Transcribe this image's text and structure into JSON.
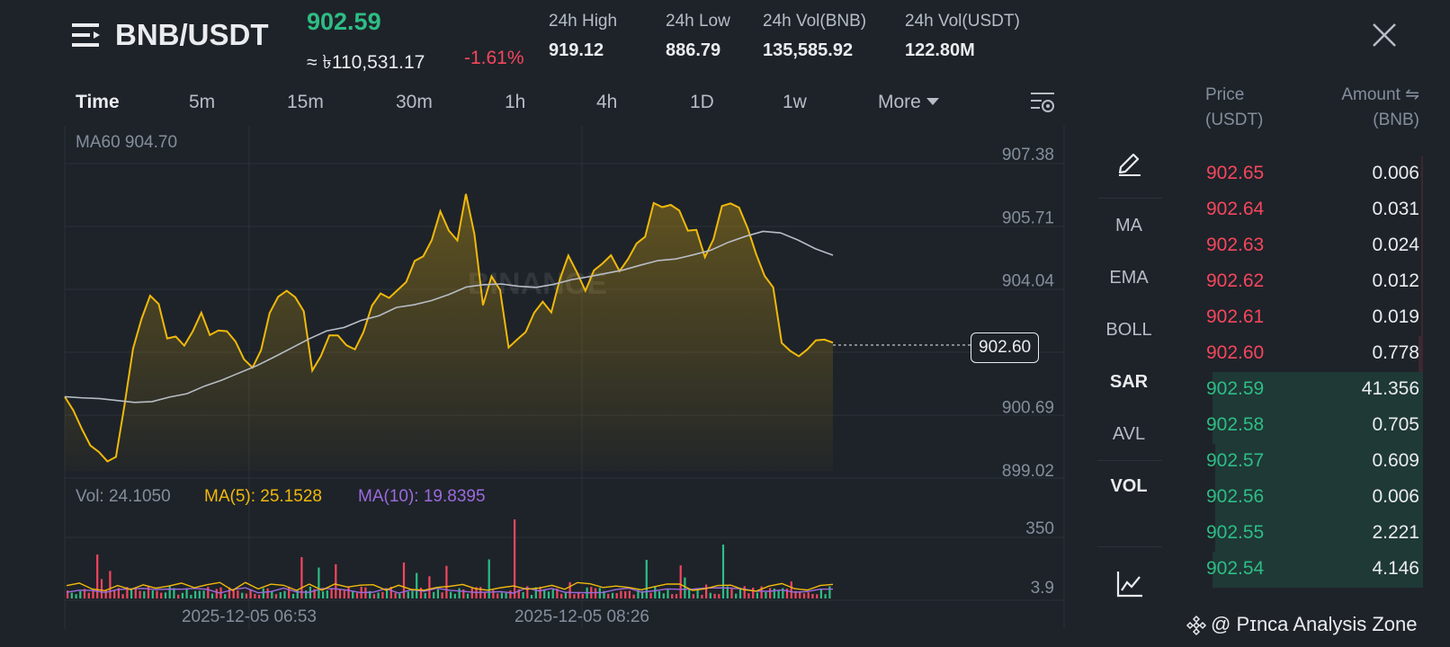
{
  "header": {
    "pair": "BNB/USDT",
    "last_price": "902.59",
    "fiat_value": "≈ ৳110,531.17",
    "change_pct": "-1.61%",
    "stats": [
      {
        "label": "24h High",
        "value": "919.12"
      },
      {
        "label": "24h Low",
        "value": "886.79"
      },
      {
        "label": "24h Vol(BNB)",
        "value": "135,585.92"
      },
      {
        "label": "24h Vol(USDT)",
        "value": "122.80M"
      }
    ],
    "icons": {
      "menu": "menu-lines-icon",
      "close": "close-icon"
    }
  },
  "intervals": {
    "tabs": [
      "Time",
      "5m",
      "15m",
      "30m",
      "1h",
      "4h",
      "1D",
      "1w",
      "More"
    ],
    "active": "Time",
    "settings_icon": "chart-settings-icon"
  },
  "chart": {
    "indicator_label": "MA60 904.70",
    "watermark": "BINANCE",
    "price_axis": [
      "907.38",
      "905.71",
      "904.04",
      "900.69",
      "899.02"
    ],
    "current_price_tag": "902.60",
    "volume_legend": {
      "vol": "Vol: 24.1050",
      "ma5": "MA(5): 25.1528",
      "ma10": "MA(10): 19.8395"
    },
    "volume_axis": [
      "350",
      "3.9"
    ],
    "time_axis": [
      "2025-12-05 06:53",
      "2025-12-05 08:26"
    ],
    "colors": {
      "line": "#f0b90b",
      "ma60": "#b7bdc6",
      "ma5": "#f0b90b",
      "ma10": "#9c6ade",
      "up": "#2ebd85",
      "down": "#f6465d"
    }
  },
  "chart_data": {
    "type": "line",
    "title": "",
    "series": [
      {
        "name": "Price",
        "values": [
          900.98,
          900.62,
          900.13,
          899.69,
          899.52,
          899.27,
          899.39,
          900.76,
          902.25,
          903.04,
          903.65,
          903.43,
          902.52,
          902.57,
          902.33,
          902.71,
          903.2,
          902.61,
          902.73,
          902.71,
          902.44,
          901.97,
          901.75,
          902.21,
          903.19,
          903.62,
          903.78,
          903.61,
          903.24,
          901.67,
          902.05,
          902.6,
          902.6,
          902.34,
          902.23,
          902.69,
          903.39,
          903.71,
          903.59,
          903.8,
          904.01,
          904.57,
          904.69,
          905.12,
          905.88,
          905.37,
          905.11,
          906.34,
          905.27,
          903.4,
          904.16,
          903.8,
          902.28,
          902.49,
          902.69,
          903.2,
          903.49,
          903.21,
          904.08,
          904.71,
          904.27,
          903.78,
          904.32,
          904.5,
          904.72,
          904.3,
          904.62,
          905.03,
          905.21,
          906.1,
          905.99,
          906.05,
          905.9,
          905.37,
          905.39,
          904.67,
          905.14,
          906.02,
          906.09,
          905.98,
          905.44,
          904.75,
          904.17,
          903.87,
          902.4,
          902.19,
          902.05,
          902.23,
          902.47,
          902.49,
          902.41
        ]
      },
      {
        "name": "MA60",
        "values": [
          900.98,
          900.95,
          900.93,
          900.88,
          900.83,
          900.85,
          900.97,
          901.06,
          901.26,
          901.42,
          901.61,
          901.8,
          902.03,
          902.27,
          902.51,
          902.72,
          902.81,
          903.0,
          903.12,
          903.34,
          903.41,
          903.52,
          903.68,
          903.88,
          903.94,
          903.96,
          903.9,
          903.87,
          903.95,
          904.07,
          904.15,
          904.24,
          904.33,
          904.46,
          904.58,
          904.62,
          904.73,
          904.85,
          905.06,
          905.22,
          905.35,
          905.31,
          905.12,
          904.89,
          904.72
        ]
      }
    ],
    "volume": {
      "ma5": [
        25.15
      ],
      "ma10": [
        19.84
      ],
      "current": 24.105
    },
    "y_axis": {
      "min": 899.02,
      "max": 907.38,
      "ticks": [
        907.38,
        905.71,
        904.04,
        900.69,
        899.02
      ]
    },
    "volume_axis": {
      "ticks": [
        350,
        3.9
      ]
    },
    "x_axis": {
      "ticks": [
        "2025-12-05 06:53",
        "2025-12-05 08:26"
      ]
    }
  },
  "sidebar_tools": {
    "items": [
      "MA",
      "EMA",
      "BOLL",
      "SAR",
      "AVL",
      "VOL"
    ],
    "active": [
      "SAR",
      "VOL"
    ],
    "icons": {
      "draw": "pencil-draw-icon",
      "indicator": "line-chart-icon"
    }
  },
  "orderbook": {
    "price_header": [
      "Price",
      "(USDT)"
    ],
    "amount_header": [
      "Amount ⇋",
      "(BNB)"
    ],
    "asks": [
      {
        "price": "902.65",
        "amount": "0.006",
        "depth": 0.01
      },
      {
        "price": "902.64",
        "amount": "0.031",
        "depth": 0.01
      },
      {
        "price": "902.63",
        "amount": "0.024",
        "depth": 0.01
      },
      {
        "price": "902.62",
        "amount": "0.012",
        "depth": 0.01
      },
      {
        "price": "902.61",
        "amount": "0.019",
        "depth": 0.01
      },
      {
        "price": "902.60",
        "amount": "0.778",
        "depth": 0.02
      }
    ],
    "bids": [
      {
        "price": "902.59",
        "amount": "41.356",
        "depth": 0.95
      },
      {
        "price": "902.58",
        "amount": "0.705",
        "depth": 0.95
      },
      {
        "price": "902.57",
        "amount": "0.609",
        "depth": 0.94
      },
      {
        "price": "902.56",
        "amount": "0.006",
        "depth": 0.94
      },
      {
        "price": "902.55",
        "amount": "2.221",
        "depth": 0.94
      },
      {
        "price": "902.54",
        "amount": "4.146",
        "depth": 0.95
      }
    ]
  },
  "footer": {
    "watermark": "@ Pɪnca Analysis Zone",
    "icon": "binance-logo-icon"
  }
}
